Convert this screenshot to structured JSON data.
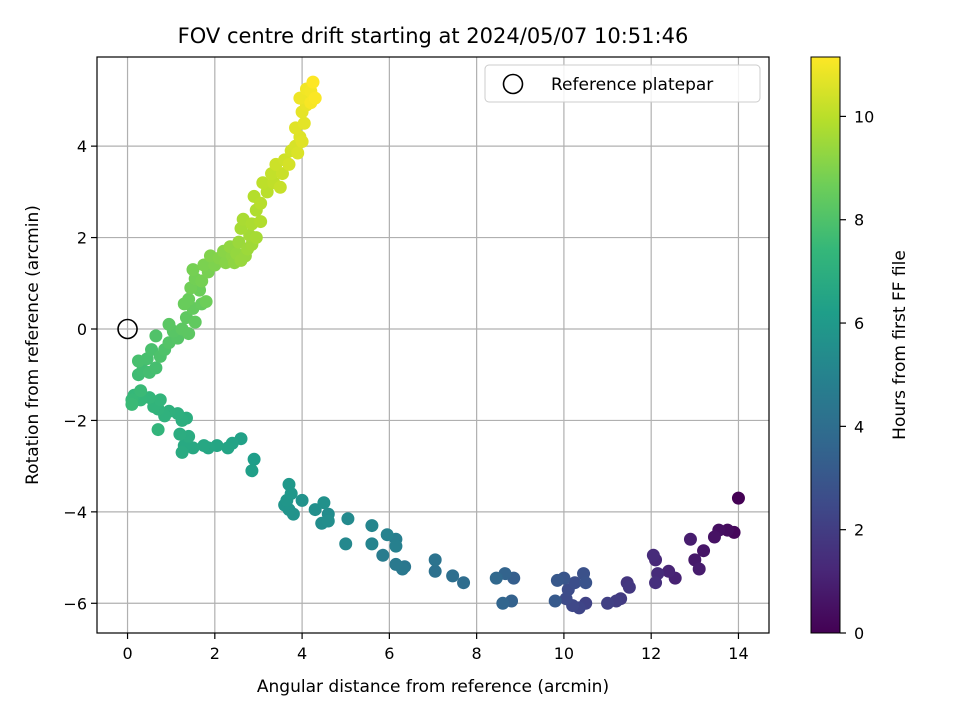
{
  "chart_data": {
    "type": "scatter",
    "title": "FOV centre drift starting at 2024/05/07 10:51:46",
    "xlabel": "Angular distance from reference (arcmin)",
    "ylabel": "Rotation from reference (arcmin)",
    "xlim": [
      -0.7,
      14.7
    ],
    "ylim": [
      -6.65,
      5.95
    ],
    "xticks": [
      0,
      2,
      4,
      6,
      8,
      10,
      12,
      14
    ],
    "yticks": [
      -6,
      -4,
      -2,
      0,
      2,
      4
    ],
    "grid": true,
    "legend": {
      "placement": "top-right",
      "entries": [
        "Reference platepar"
      ]
    },
    "reference_point": {
      "x": 0,
      "y": 0,
      "label": "Reference platepar"
    },
    "colorbar": {
      "label": "Hours from first FF file",
      "range": [
        0,
        11.15
      ],
      "ticks": [
        0,
        2,
        4,
        6,
        8,
        10
      ],
      "colormap": "viridis"
    },
    "points": [
      [
        14.0,
        -3.7,
        0.0
      ],
      [
        13.9,
        -4.45,
        0.2
      ],
      [
        13.75,
        -4.4,
        0.35
      ],
      [
        13.55,
        -4.4,
        0.45
      ],
      [
        13.45,
        -4.55,
        0.55
      ],
      [
        13.2,
        -4.85,
        0.65
      ],
      [
        13.0,
        -5.05,
        0.75
      ],
      [
        13.1,
        -5.25,
        0.85
      ],
      [
        12.9,
        -4.6,
        0.9
      ],
      [
        12.55,
        -5.45,
        1.05
      ],
      [
        12.4,
        -5.3,
        1.15
      ],
      [
        12.1,
        -5.05,
        1.25
      ],
      [
        12.05,
        -4.95,
        1.35
      ],
      [
        12.15,
        -5.35,
        1.4
      ],
      [
        12.1,
        -5.55,
        1.5
      ],
      [
        11.45,
        -5.55,
        1.7
      ],
      [
        11.5,
        -5.65,
        1.8
      ],
      [
        11.3,
        -5.9,
        1.9
      ],
      [
        11.2,
        -5.95,
        2.0
      ],
      [
        11.0,
        -6.0,
        2.1
      ],
      [
        10.5,
        -6.0,
        2.2
      ],
      [
        10.35,
        -6.1,
        2.3
      ],
      [
        10.2,
        -6.05,
        2.4
      ],
      [
        10.05,
        -5.9,
        2.5
      ],
      [
        10.1,
        -5.7,
        2.55
      ],
      [
        10.25,
        -5.55,
        2.65
      ],
      [
        10.45,
        -5.35,
        2.75
      ],
      [
        10.5,
        -5.55,
        2.85
      ],
      [
        10.0,
        -5.45,
        2.95
      ],
      [
        9.85,
        -5.5,
        3.05
      ],
      [
        9.8,
        -5.95,
        3.15
      ],
      [
        8.85,
        -5.45,
        3.35
      ],
      [
        8.8,
        -5.95,
        3.45
      ],
      [
        8.65,
        -5.35,
        3.55
      ],
      [
        8.6,
        -6.0,
        3.65
      ],
      [
        8.45,
        -5.45,
        3.75
      ],
      [
        7.7,
        -5.55,
        3.95
      ],
      [
        7.45,
        -5.4,
        4.05
      ],
      [
        7.05,
        -5.3,
        4.15
      ],
      [
        7.05,
        -5.05,
        4.25
      ],
      [
        6.35,
        -5.2,
        4.4
      ],
      [
        6.3,
        -5.25,
        4.5
      ],
      [
        6.15,
        -5.15,
        4.55
      ],
      [
        5.85,
        -4.95,
        4.65
      ],
      [
        6.15,
        -4.6,
        4.75
      ],
      [
        6.15,
        -4.75,
        4.85
      ],
      [
        5.95,
        -4.5,
        4.95
      ],
      [
        5.6,
        -4.7,
        5.05
      ],
      [
        5.6,
        -4.3,
        5.1
      ],
      [
        5.0,
        -4.7,
        5.2
      ],
      [
        5.05,
        -4.15,
        5.3
      ],
      [
        4.6,
        -4.05,
        5.4
      ],
      [
        4.45,
        -4.25,
        5.45
      ],
      [
        4.6,
        -4.2,
        5.5
      ],
      [
        4.3,
        -3.95,
        5.55
      ],
      [
        4.5,
        -3.8,
        5.6
      ],
      [
        4.0,
        -3.75,
        5.65
      ],
      [
        3.8,
        -4.05,
        5.7
      ],
      [
        3.7,
        -3.95,
        5.75
      ],
      [
        3.6,
        -3.85,
        5.8
      ],
      [
        3.65,
        -3.75,
        5.85
      ],
      [
        3.75,
        -3.6,
        5.9
      ],
      [
        3.7,
        -3.4,
        5.95
      ],
      [
        2.9,
        -2.85,
        6.2
      ],
      [
        2.85,
        -3.1,
        6.25
      ],
      [
        2.6,
        -2.4,
        6.35
      ],
      [
        2.4,
        -2.5,
        6.45
      ],
      [
        2.3,
        -2.6,
        6.5
      ],
      [
        2.05,
        -2.55,
        6.55
      ],
      [
        1.85,
        -2.6,
        6.6
      ],
      [
        1.75,
        -2.55,
        6.65
      ],
      [
        1.5,
        -2.6,
        6.7
      ],
      [
        1.3,
        -2.55,
        6.75
      ],
      [
        1.25,
        -2.7,
        6.8
      ],
      [
        1.4,
        -2.35,
        6.85
      ],
      [
        1.2,
        -2.3,
        6.9
      ],
      [
        1.35,
        -1.95,
        6.95
      ],
      [
        1.25,
        -2.0,
        7.0
      ],
      [
        1.15,
        -1.85,
        7.05
      ],
      [
        0.95,
        -1.8,
        7.1
      ],
      [
        0.85,
        -1.9,
        7.15
      ],
      [
        0.7,
        -1.75,
        7.2
      ],
      [
        0.6,
        -1.7,
        7.25
      ],
      [
        0.75,
        -1.55,
        7.3
      ],
      [
        0.7,
        -2.2,
        7.3
      ],
      [
        0.5,
        -1.5,
        7.35
      ],
      [
        0.3,
        -1.55,
        7.4
      ],
      [
        0.15,
        -1.45,
        7.45
      ],
      [
        0.1,
        -1.55,
        7.5
      ],
      [
        0.1,
        -1.65,
        7.55
      ],
      [
        0.3,
        -1.35,
        7.55
      ],
      [
        0.25,
        -1.0,
        7.65
      ],
      [
        0.35,
        -0.9,
        7.7
      ],
      [
        0.5,
        -0.95,
        7.75
      ],
      [
        0.65,
        -0.85,
        7.8
      ],
      [
        0.25,
        -0.7,
        7.85
      ],
      [
        0.45,
        -0.65,
        7.85
      ],
      [
        0.55,
        -0.45,
        7.9
      ],
      [
        0.75,
        -0.6,
        7.95
      ],
      [
        0.85,
        -0.45,
        8.0
      ],
      [
        0.65,
        -0.15,
        8.05
      ],
      [
        0.95,
        -0.3,
        8.1
      ],
      [
        1.15,
        -0.2,
        8.15
      ],
      [
        1.05,
        -0.05,
        8.2
      ],
      [
        0.95,
        0.1,
        8.25
      ],
      [
        1.25,
        0.0,
        8.3
      ],
      [
        1.4,
        -0.1,
        8.3
      ],
      [
        1.35,
        0.25,
        8.35
      ],
      [
        1.55,
        0.15,
        8.4
      ],
      [
        1.5,
        0.45,
        8.45
      ],
      [
        1.7,
        0.55,
        8.5
      ],
      [
        1.4,
        0.65,
        8.55
      ],
      [
        1.3,
        0.55,
        8.55
      ],
      [
        1.65,
        0.85,
        8.6
      ],
      [
        1.8,
        0.6,
        8.65
      ],
      [
        1.45,
        0.9,
        8.7
      ],
      [
        1.55,
        1.1,
        8.75
      ],
      [
        1.7,
        1.05,
        8.8
      ],
      [
        1.5,
        1.3,
        8.8
      ],
      [
        1.85,
        1.25,
        8.85
      ],
      [
        1.75,
        1.4,
        8.9
      ],
      [
        2.0,
        1.4,
        8.95
      ],
      [
        1.9,
        1.6,
        9.0
      ],
      [
        2.1,
        1.55,
        9.05
      ],
      [
        2.25,
        1.45,
        9.1
      ],
      [
        2.2,
        1.7,
        9.15
      ],
      [
        2.4,
        1.6,
        9.2
      ],
      [
        2.45,
        1.45,
        9.25
      ],
      [
        2.35,
        1.8,
        9.3
      ],
      [
        2.5,
        1.65,
        9.35
      ],
      [
        2.6,
        1.5,
        9.4
      ],
      [
        2.7,
        1.6,
        9.4
      ],
      [
        2.55,
        1.9,
        9.45
      ],
      [
        2.75,
        1.75,
        9.5
      ],
      [
        2.85,
        1.85,
        9.55
      ],
      [
        2.8,
        2.05,
        9.6
      ],
      [
        2.95,
        2.0,
        9.65
      ],
      [
        2.6,
        2.2,
        9.65
      ],
      [
        2.65,
        2.4,
        9.7
      ],
      [
        2.85,
        2.3,
        9.75
      ],
      [
        2.95,
        2.6,
        9.8
      ],
      [
        3.05,
        2.35,
        9.85
      ],
      [
        2.9,
        2.9,
        9.9
      ],
      [
        3.05,
        2.75,
        9.95
      ],
      [
        3.2,
        3.0,
        10.0
      ],
      [
        3.1,
        3.2,
        10.05
      ],
      [
        3.35,
        3.2,
        10.1
      ],
      [
        3.3,
        3.4,
        10.15
      ],
      [
        3.5,
        3.1,
        10.2
      ],
      [
        3.55,
        3.4,
        10.25
      ],
      [
        3.4,
        3.6,
        10.3
      ],
      [
        3.6,
        3.7,
        10.35
      ],
      [
        3.75,
        3.9,
        10.4
      ],
      [
        3.7,
        3.6,
        10.45
      ],
      [
        3.85,
        4.0,
        10.5
      ],
      [
        3.9,
        3.85,
        10.55
      ],
      [
        3.95,
        4.2,
        10.6
      ],
      [
        4.0,
        4.1,
        10.65
      ],
      [
        3.85,
        4.4,
        10.65
      ],
      [
        4.05,
        4.5,
        10.7
      ],
      [
        4.0,
        4.75,
        10.75
      ],
      [
        4.1,
        4.9,
        10.8
      ],
      [
        4.15,
        5.1,
        10.85
      ],
      [
        3.95,
        5.05,
        10.9
      ],
      [
        4.1,
        5.25,
        10.95
      ],
      [
        4.2,
        5.2,
        11.0
      ],
      [
        4.2,
        4.95,
        11.05
      ],
      [
        4.3,
        5.05,
        11.1
      ],
      [
        4.25,
        5.4,
        11.15
      ]
    ]
  }
}
